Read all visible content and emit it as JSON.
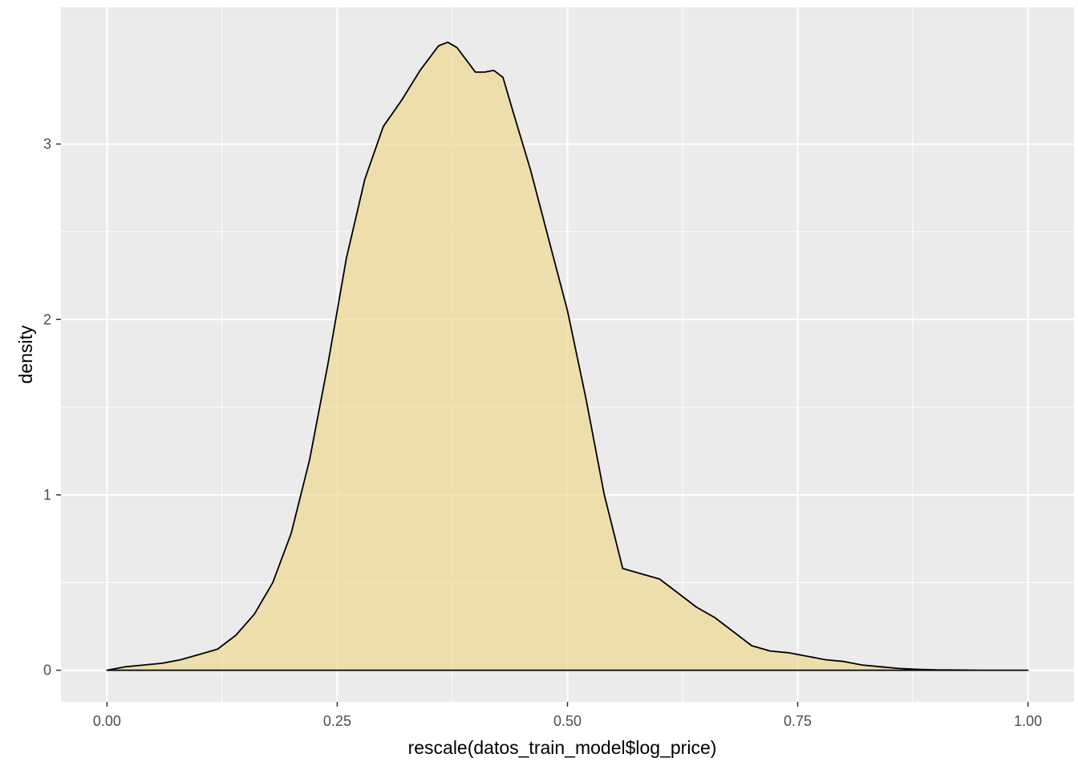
{
  "chart_data": {
    "type": "area",
    "title": "",
    "xlabel": "rescale(datos_train_model$log_price)",
    "ylabel": "density",
    "xlim": [
      -0.05,
      1.05
    ],
    "ylim": [
      -0.18,
      3.78
    ],
    "x_ticks": [
      0,
      0.25,
      0.5,
      0.75,
      1
    ],
    "x_tick_labels": [
      "0.00",
      "0.25",
      "0.50",
      "0.75",
      "1.00"
    ],
    "y_ticks": [
      0,
      1,
      2,
      3
    ],
    "y_tick_labels": [
      "0",
      "1",
      "2",
      "3"
    ],
    "grid": true,
    "legend": "none",
    "colors": {
      "panel_bg": "#ebebeb",
      "grid": "#ffffff",
      "fill": "#f0d890",
      "fill_opacity": 0.7,
      "line": "#000000",
      "tick": "#333333"
    },
    "series": [
      {
        "x": [
          0,
          0.02,
          0.04,
          0.06,
          0.08,
          0.1,
          0.12,
          0.14,
          0.16,
          0.18,
          0.2,
          0.22,
          0.24,
          0.26,
          0.28,
          0.3,
          0.32,
          0.34,
          0.36,
          0.37,
          0.38,
          0.39,
          0.4,
          0.41,
          0.42,
          0.43,
          0.44,
          0.46,
          0.48,
          0.5,
          0.52,
          0.54,
          0.56,
          0.58,
          0.6,
          0.62,
          0.64,
          0.66,
          0.68,
          0.7,
          0.72,
          0.74,
          0.76,
          0.78,
          0.8,
          0.82,
          0.84,
          0.86,
          0.88,
          0.9,
          0.95,
          1.0
        ],
        "y": [
          0.0,
          0.02,
          0.03,
          0.04,
          0.06,
          0.09,
          0.12,
          0.2,
          0.32,
          0.5,
          0.78,
          1.2,
          1.75,
          2.35,
          2.8,
          3.1,
          3.25,
          3.42,
          3.56,
          3.58,
          3.55,
          3.48,
          3.41,
          3.41,
          3.42,
          3.38,
          3.2,
          2.85,
          2.45,
          2.05,
          1.55,
          1.0,
          0.58,
          0.55,
          0.52,
          0.44,
          0.36,
          0.3,
          0.22,
          0.14,
          0.11,
          0.1,
          0.08,
          0.06,
          0.05,
          0.03,
          0.02,
          0.01,
          0.005,
          0.002,
          0.0,
          0.0
        ]
      }
    ]
  }
}
